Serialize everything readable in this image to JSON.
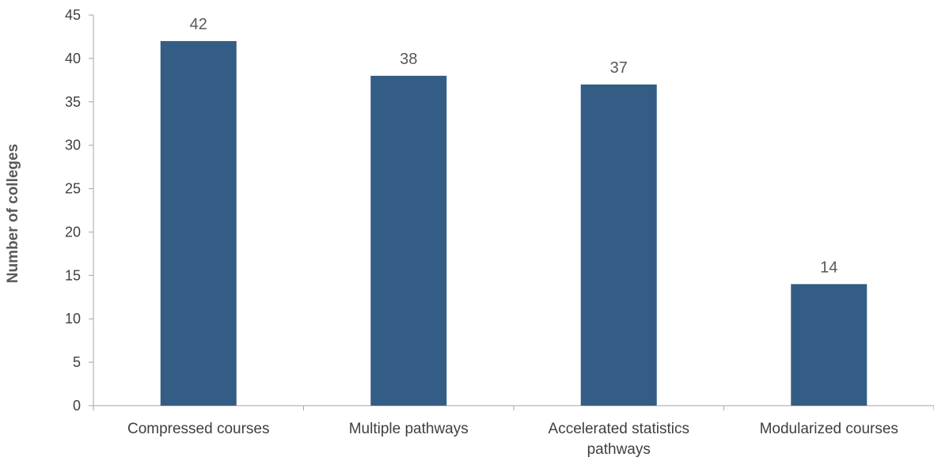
{
  "chart_data": {
    "type": "bar",
    "categories": [
      "Compressed courses",
      "Multiple pathways",
      "Accelerated statistics pathways",
      "Modularized courses"
    ],
    "category_lines": [
      [
        "Compressed courses"
      ],
      [
        "Multiple pathways"
      ],
      [
        "Accelerated statistics",
        "pathways"
      ],
      [
        "Modularized courses"
      ]
    ],
    "values": [
      42,
      38,
      37,
      14
    ],
    "title": "",
    "xlabel": "",
    "ylabel": "Number of colleges",
    "ylim": [
      0,
      45
    ],
    "yticks": [
      0,
      5,
      10,
      15,
      20,
      25,
      30,
      35,
      40,
      45
    ],
    "grid": false,
    "legend": "none",
    "colors": {
      "bar": "#335D85",
      "axis": "#A6A6A6",
      "text": "#404040"
    }
  }
}
